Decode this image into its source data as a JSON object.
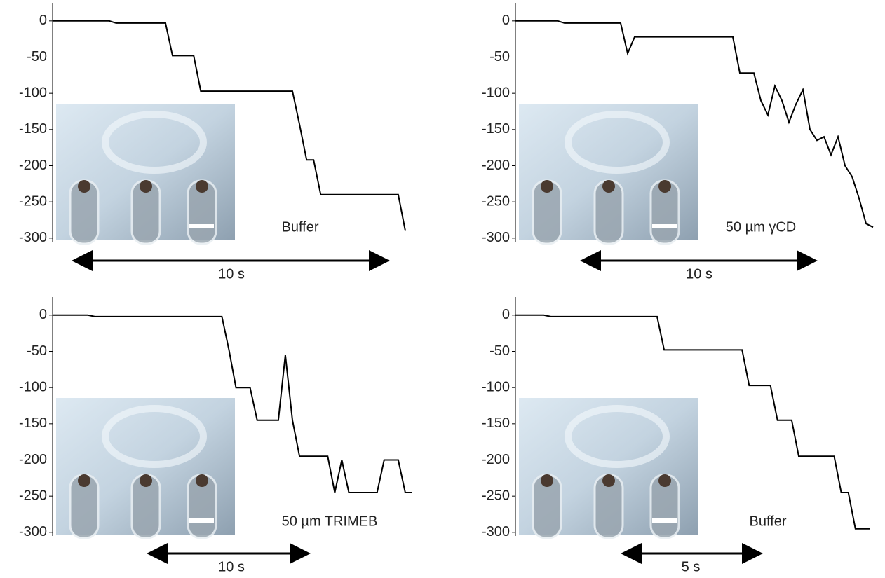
{
  "chart_data": [
    {
      "type": "line",
      "annotation": "Buffer",
      "scale_label": "10 s",
      "color": "#000000",
      "ylim": [
        -305,
        25
      ],
      "yticks": [
        0,
        -50,
        -100,
        -150,
        -200,
        -250,
        -300
      ],
      "values": [
        0,
        0,
        0,
        0,
        0,
        0,
        0,
        0,
        0,
        -3,
        -3,
        -3,
        -3,
        -3,
        -3,
        -3,
        -3,
        -48,
        -48,
        -48,
        -48,
        -97,
        -97,
        -97,
        -97,
        -97,
        -97,
        -97,
        -97,
        -97,
        -97,
        -97,
        -97,
        -97,
        -97,
        -143,
        -192,
        -192,
        -240,
        -240,
        -240,
        -240,
        -240,
        -240,
        -240,
        -240,
        -240,
        -240,
        -240,
        -240,
        -290
      ]
    },
    {
      "type": "line",
      "annotation": "50 µm γCD",
      "scale_label": "10 s",
      "color": "#000000",
      "ylim": [
        -305,
        25
      ],
      "yticks": [
        0,
        -50,
        -100,
        -150,
        -200,
        -250,
        -300
      ],
      "values": [
        0,
        0,
        0,
        0,
        0,
        0,
        0,
        -3,
        -3,
        -3,
        -3,
        -3,
        -3,
        -3,
        -3,
        -3,
        -45,
        -22,
        -22,
        -22,
        -22,
        -22,
        -22,
        -22,
        -22,
        -22,
        -22,
        -22,
        -22,
        -22,
        -22,
        -22,
        -72,
        -72,
        -72,
        -110,
        -130,
        -90,
        -110,
        -140,
        -115,
        -95,
        -150,
        -165,
        -160,
        -185,
        -160,
        -200,
        -215,
        -245,
        -280,
        -285
      ]
    },
    {
      "type": "line",
      "annotation": "50 µm TRIMEB",
      "scale_label": "10 s",
      "color": "#000000",
      "ylim": [
        -305,
        25
      ],
      "yticks": [
        0,
        -50,
        -100,
        -150,
        -200,
        -250,
        -300
      ],
      "values": [
        0,
        0,
        0,
        0,
        0,
        0,
        -2,
        -2,
        -2,
        -2,
        -2,
        -2,
        -2,
        -2,
        -2,
        -2,
        -2,
        -2,
        -2,
        -2,
        -2,
        -2,
        -2,
        -2,
        -2,
        -48,
        -100,
        -100,
        -100,
        -145,
        -145,
        -145,
        -145,
        -55,
        -145,
        -195,
        -195,
        -195,
        -195,
        -195,
        -245,
        -200,
        -245,
        -245,
        -245,
        -245,
        -245,
        -200,
        -200,
        -200,
        -245,
        -245
      ]
    },
    {
      "type": "line",
      "annotation": "Buffer",
      "scale_label": "5 s",
      "color": "#000000",
      "ylim": [
        -305,
        25
      ],
      "yticks": [
        0,
        -50,
        -100,
        -150,
        -200,
        -250,
        -300
      ],
      "values": [
        0,
        0,
        0,
        0,
        0,
        -2,
        -2,
        -2,
        -2,
        -2,
        -2,
        -2,
        -2,
        -2,
        -2,
        -2,
        -2,
        -2,
        -2,
        -2,
        -2,
        -48,
        -48,
        -48,
        -48,
        -48,
        -48,
        -48,
        -48,
        -48,
        -48,
        -48,
        -48,
        -97,
        -97,
        -97,
        -97,
        -145,
        -145,
        -145,
        -195,
        -195,
        -195,
        -195,
        -195,
        -195,
        -245,
        -245,
        -295,
        -295,
        -295
      ]
    }
  ]
}
